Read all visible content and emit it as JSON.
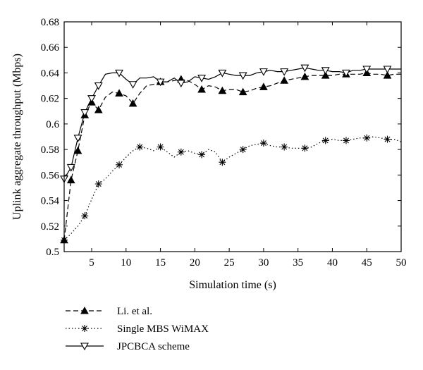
{
  "chart_data": {
    "type": "line",
    "title": "",
    "xlabel": "Simulation time (s)",
    "ylabel": "Uplink aggregate throughput (Mbps)",
    "xlim": [
      1,
      50
    ],
    "ylim": [
      0.5,
      0.68
    ],
    "xticks": [
      5,
      10,
      15,
      20,
      25,
      30,
      35,
      40,
      45,
      50
    ],
    "yticks": [
      0.5,
      0.52,
      0.54,
      0.56,
      0.58,
      0.6,
      0.62,
      0.64,
      0.66,
      0.68
    ],
    "xtick_labels": [
      "5",
      "10",
      "15",
      "20",
      "25",
      "30",
      "35",
      "40",
      "45",
      "50"
    ],
    "ytick_labels": [
      "0.5",
      "0.52",
      "0.54",
      "0.56",
      "0.58",
      "0.6",
      "0.62",
      "0.64",
      "0.66",
      "0.68"
    ],
    "grid": false,
    "legend_position": "bottom-left-outside",
    "series": [
      {
        "name": "Li. et al.",
        "line_style": "dashed",
        "marker": "triangle-up-filled",
        "color": "#000000",
        "x": [
          1,
          2,
          3,
          4,
          5,
          6,
          7,
          8,
          9,
          10,
          11,
          12,
          13,
          14,
          15,
          16,
          17,
          18,
          19,
          20,
          21,
          22,
          23,
          24,
          25,
          26,
          27,
          28,
          29,
          30,
          31,
          32,
          33,
          34,
          35,
          36,
          37,
          38,
          39,
          40,
          41,
          42,
          43,
          44,
          45,
          46,
          47,
          48,
          49,
          50
        ],
        "y": [
          0.509,
          0.556,
          0.579,
          0.607,
          0.617,
          0.611,
          0.621,
          0.625,
          0.624,
          0.622,
          0.616,
          0.624,
          0.63,
          0.631,
          0.633,
          0.633,
          0.634,
          0.635,
          0.634,
          0.631,
          0.627,
          0.63,
          0.629,
          0.626,
          0.627,
          0.627,
          0.625,
          0.626,
          0.628,
          0.629,
          0.63,
          0.632,
          0.634,
          0.635,
          0.636,
          0.637,
          0.638,
          0.638,
          0.638,
          0.638,
          0.639,
          0.639,
          0.639,
          0.639,
          0.64,
          0.639,
          0.639,
          0.638,
          0.639,
          0.639
        ],
        "marker_x": [
          1,
          2,
          3,
          4,
          5,
          6,
          9,
          11,
          15,
          18,
          21,
          24,
          27,
          30,
          33,
          36,
          39,
          42,
          45,
          48
        ]
      },
      {
        "name": "Single MBS WiMAX",
        "line_style": "dotted",
        "marker": "asterisk",
        "color": "#000000",
        "x": [
          1,
          2,
          3,
          4,
          5,
          6,
          7,
          8,
          9,
          10,
          11,
          12,
          13,
          14,
          15,
          16,
          17,
          18,
          19,
          20,
          21,
          22,
          23,
          24,
          25,
          26,
          27,
          28,
          29,
          30,
          31,
          32,
          33,
          34,
          35,
          36,
          37,
          38,
          39,
          40,
          41,
          42,
          43,
          44,
          45,
          46,
          47,
          48,
          49,
          50
        ],
        "y": [
          0.509,
          0.514,
          0.52,
          0.528,
          0.541,
          0.553,
          0.557,
          0.563,
          0.568,
          0.574,
          0.579,
          0.582,
          0.581,
          0.579,
          0.582,
          0.578,
          0.574,
          0.578,
          0.579,
          0.577,
          0.576,
          0.58,
          0.578,
          0.57,
          0.574,
          0.577,
          0.58,
          0.583,
          0.584,
          0.585,
          0.583,
          0.582,
          0.582,
          0.581,
          0.581,
          0.581,
          0.582,
          0.585,
          0.587,
          0.588,
          0.587,
          0.587,
          0.588,
          0.589,
          0.589,
          0.59,
          0.589,
          0.588,
          0.588,
          0.586
        ],
        "marker_x": [
          1,
          4,
          6,
          9,
          12,
          15,
          18,
          21,
          24,
          27,
          30,
          33,
          36,
          39,
          42,
          45,
          48
        ]
      },
      {
        "name": "JPCBCA scheme",
        "line_style": "solid",
        "marker": "triangle-down-open",
        "color": "#000000",
        "x": [
          1,
          2,
          3,
          4,
          5,
          6,
          7,
          8,
          9,
          10,
          11,
          12,
          13,
          14,
          15,
          16,
          17,
          18,
          19,
          20,
          21,
          22,
          23,
          24,
          25,
          26,
          27,
          28,
          29,
          30,
          31,
          32,
          33,
          34,
          35,
          36,
          37,
          38,
          39,
          40,
          41,
          42,
          43,
          44,
          45,
          46,
          47,
          48,
          49,
          50
        ],
        "y": [
          0.557,
          0.566,
          0.589,
          0.609,
          0.62,
          0.63,
          0.639,
          0.64,
          0.64,
          0.635,
          0.631,
          0.636,
          0.636,
          0.637,
          0.633,
          0.633,
          0.636,
          0.632,
          0.633,
          0.637,
          0.636,
          0.635,
          0.637,
          0.64,
          0.639,
          0.638,
          0.638,
          0.638,
          0.64,
          0.641,
          0.642,
          0.641,
          0.641,
          0.642,
          0.643,
          0.644,
          0.643,
          0.642,
          0.642,
          0.641,
          0.641,
          0.64,
          0.642,
          0.642,
          0.643,
          0.643,
          0.643,
          0.643,
          0.643,
          0.643
        ],
        "marker_x": [
          1,
          2,
          3,
          4,
          5,
          6,
          9,
          11,
          15,
          18,
          21,
          24,
          27,
          30,
          33,
          36,
          39,
          42,
          45,
          48
        ]
      }
    ]
  }
}
